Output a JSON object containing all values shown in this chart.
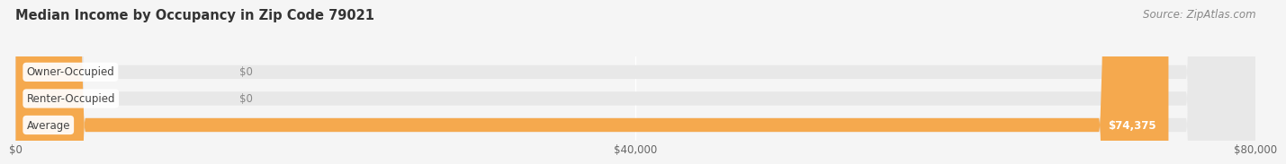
{
  "title": "Median Income by Occupancy in Zip Code 79021",
  "source": "Source: ZipAtlas.com",
  "categories": [
    "Owner-Occupied",
    "Renter-Occupied",
    "Average"
  ],
  "values": [
    0,
    0,
    74375
  ],
  "bar_colors": [
    "#7ecece",
    "#c9a8d4",
    "#f5a94e"
  ],
  "bar_bg_color": "#e8e8e8",
  "fig_bg_color": "#f5f5f5",
  "xlim": [
    0,
    80000
  ],
  "xticks": [
    0,
    40000,
    80000
  ],
  "xtick_labels": [
    "$0",
    "$40,000",
    "$80,000"
  ],
  "value_labels": [
    "$0",
    "$0",
    "$74,375"
  ],
  "title_fontsize": 10.5,
  "label_fontsize": 8.5,
  "tick_fontsize": 8.5,
  "source_fontsize": 8.5,
  "bar_height": 0.52
}
